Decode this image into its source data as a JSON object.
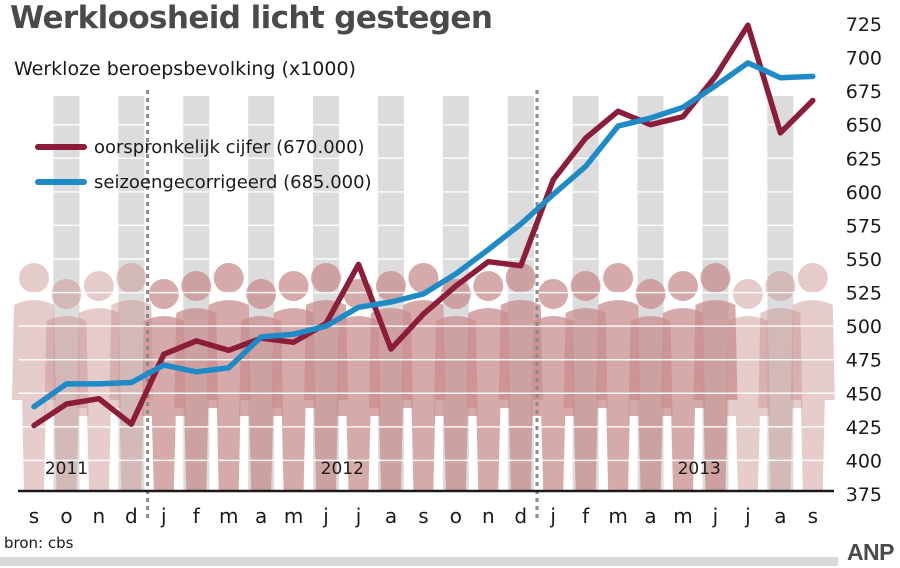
{
  "header": {
    "title": "Werkloosheid licht gestegen",
    "subtitle": "Werkloze beroepsbevolking (x1000)"
  },
  "footer": {
    "source": "bron: cbs",
    "brand": "ANP"
  },
  "colors": {
    "original": "#8b1c3a",
    "seasonal": "#1e8bc6",
    "figures": "#c98e8e",
    "band": "#dcdcdc"
  },
  "chart_data": {
    "type": "line",
    "categories": [
      "s",
      "o",
      "n",
      "d",
      "j",
      "f",
      "m",
      "a",
      "m",
      "j",
      "j",
      "a",
      "s",
      "o",
      "n",
      "d",
      "j",
      "f",
      "m",
      "a",
      "m",
      "j",
      "j",
      "a",
      "s"
    ],
    "years": [
      {
        "label": "2011",
        "index": 1
      },
      {
        "label": "2012",
        "index": 9.5
      },
      {
        "label": "2013",
        "index": 20.5
      }
    ],
    "year_boundaries": [
      3.5,
      15.5
    ],
    "ylim": [
      375,
      725
    ],
    "yticks": [
      375,
      400,
      425,
      450,
      475,
      500,
      525,
      550,
      575,
      600,
      625,
      650,
      675,
      700,
      725
    ],
    "series": [
      {
        "name": "oorspronkelijk cijfer (670.000)",
        "color": "#8b1c3a",
        "values": [
          426,
          442,
          446,
          427,
          479,
          489,
          482,
          491,
          488,
          502,
          546,
          483,
          509,
          530,
          548,
          545,
          609,
          640,
          660,
          650,
          656,
          686,
          724,
          644,
          668
        ]
      },
      {
        "name": "seizoengecorrigeerd (685.000)",
        "color": "#1e8bc6",
        "values": [
          440,
          457,
          457,
          458,
          471,
          466,
          469,
          492,
          494,
          500,
          514,
          518,
          524,
          539,
          557,
          576,
          598,
          619,
          649,
          655,
          663,
          679,
          696,
          685,
          686
        ]
      }
    ]
  }
}
